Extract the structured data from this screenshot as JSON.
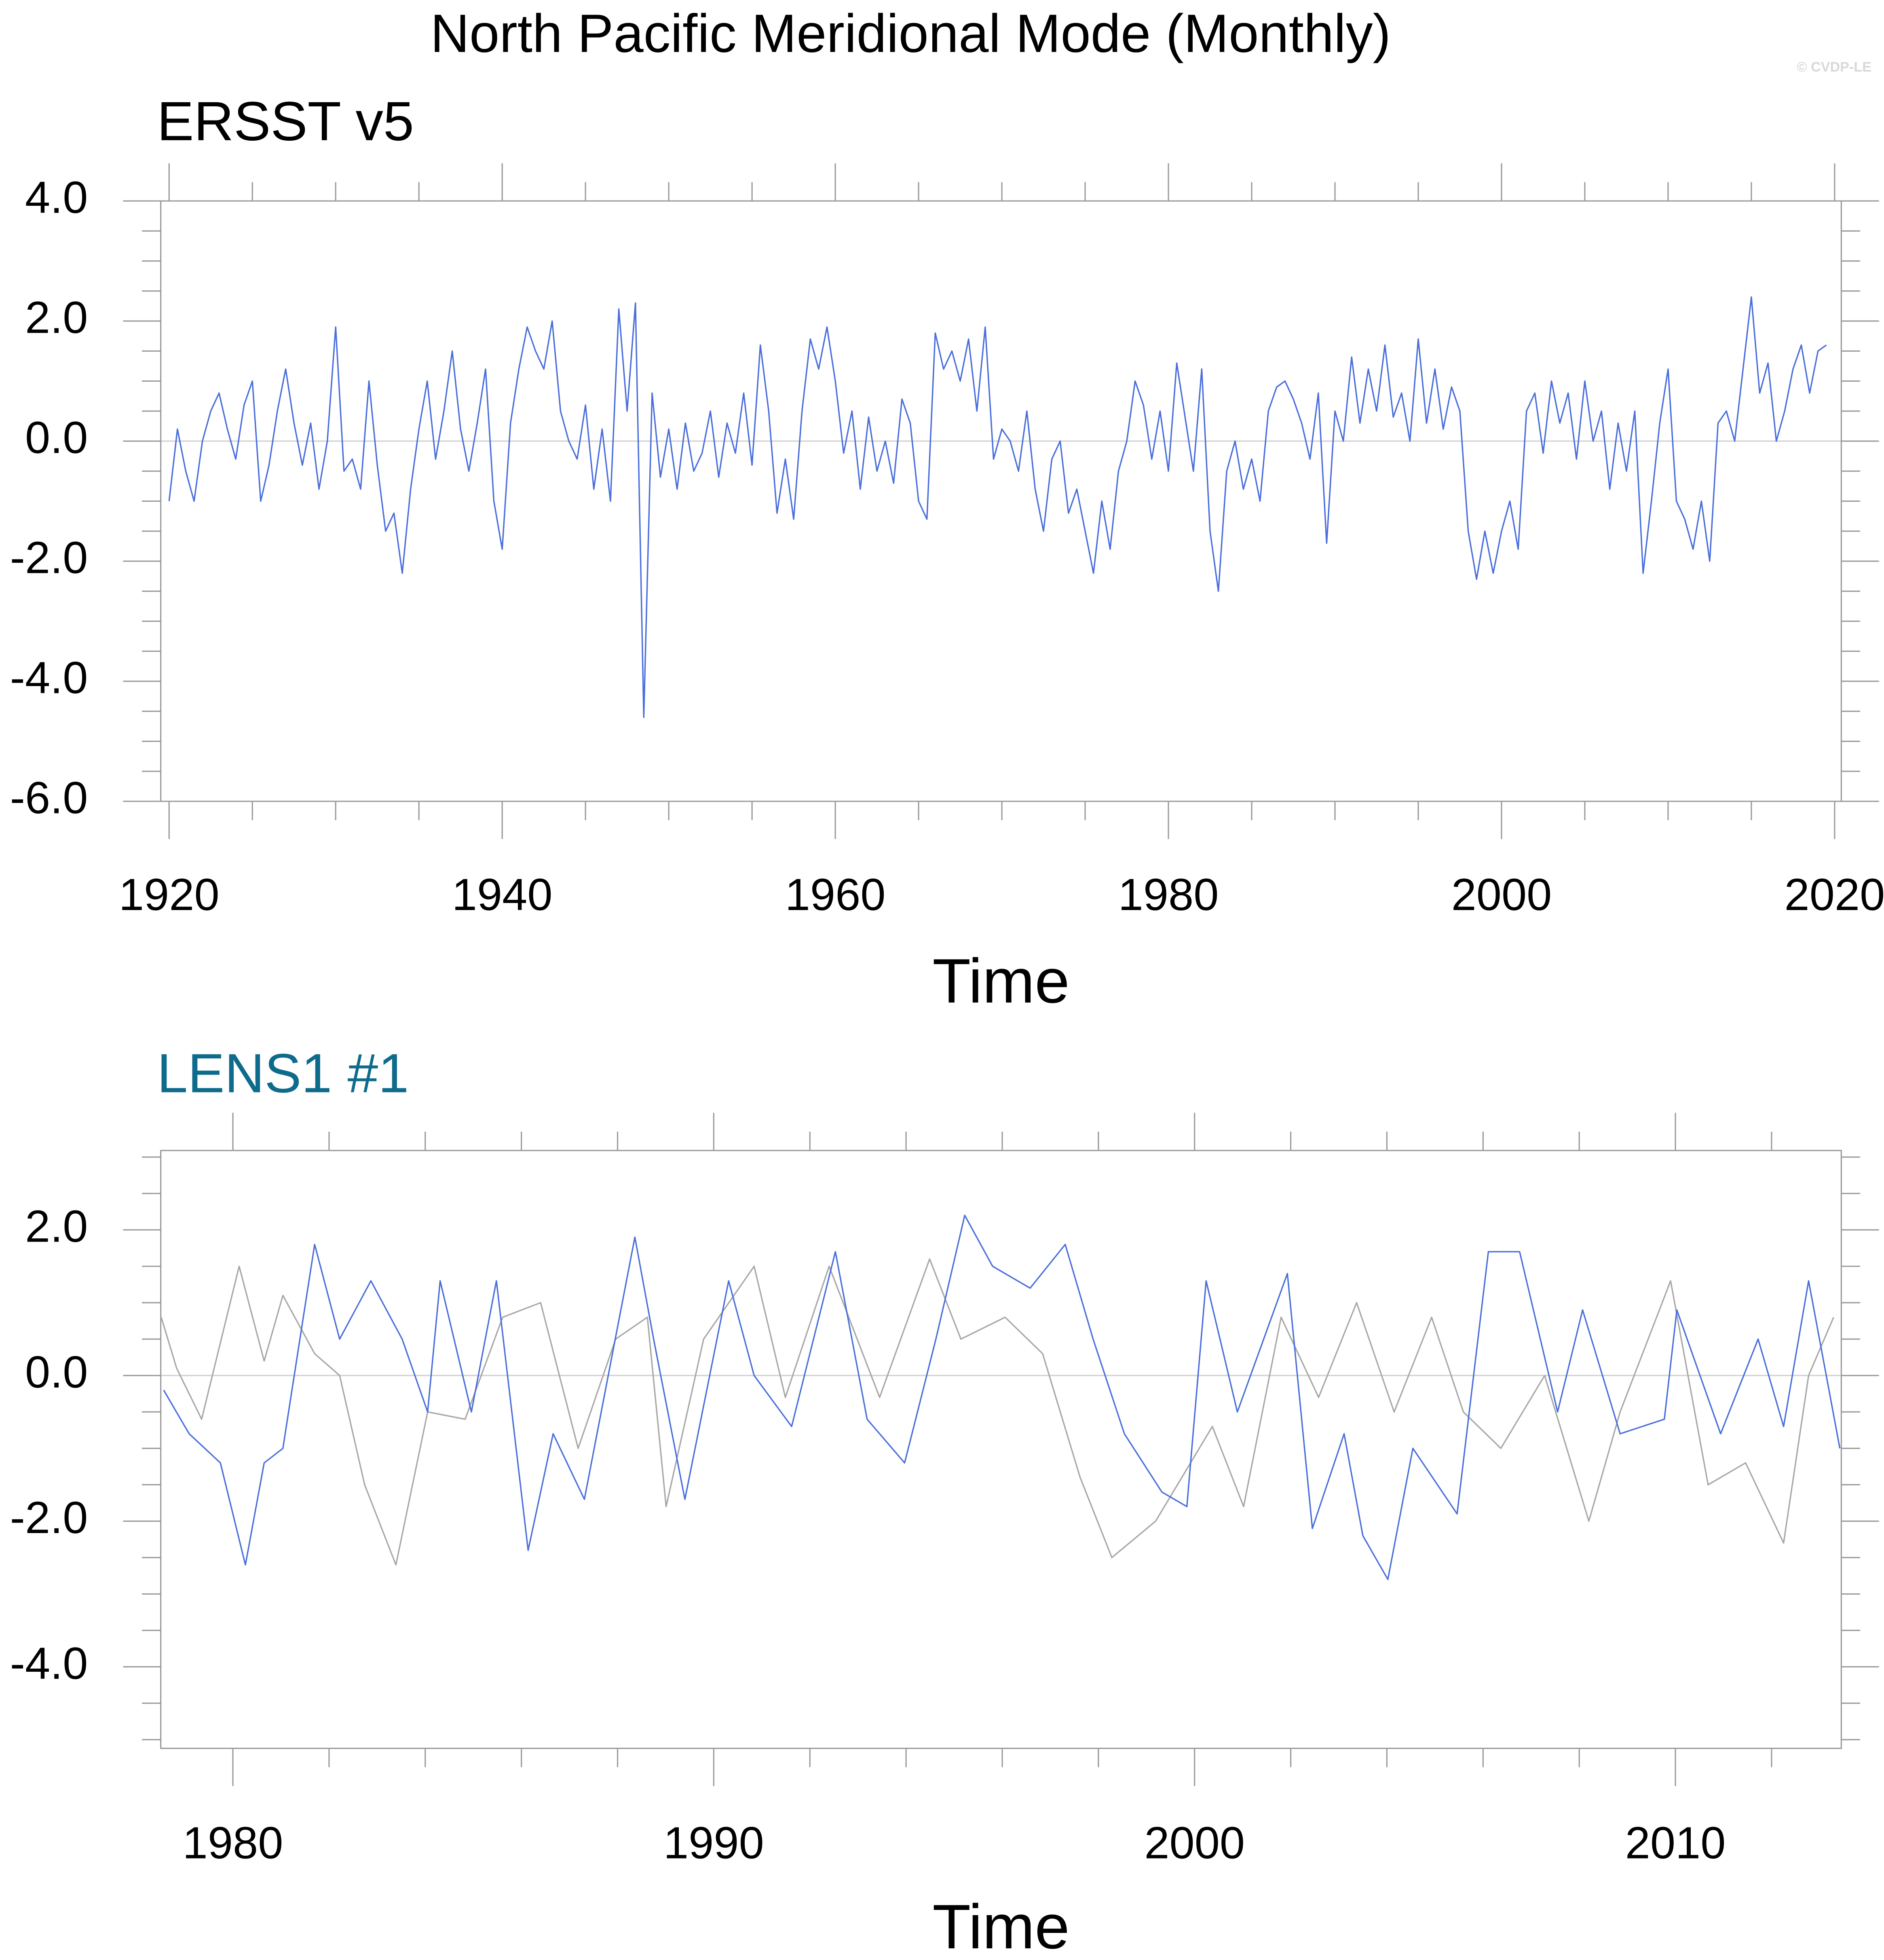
{
  "title": "North Pacific Meridional Mode (Monthly)",
  "credit": "© CVDP-LE",
  "chart_data": [
    {
      "type": "line",
      "title": "ERSST v5",
      "title_color": "#000000",
      "xlabel": "Time",
      "xlim": [
        1919.5,
        2020.4
      ],
      "xticks": [
        1920,
        1940,
        1960,
        1980,
        2000,
        2020
      ],
      "xminorticks": [
        1925,
        1930,
        1935,
        1945,
        1950,
        1955,
        1965,
        1970,
        1975,
        1985,
        1990,
        1995,
        2005,
        2010,
        2015
      ],
      "ylim": [
        -6,
        4
      ],
      "yticks": [
        {
          "value": -6,
          "label": "-6.0"
        },
        {
          "value": -4,
          "label": "-4.0"
        },
        {
          "value": -2,
          "label": "-2.0"
        },
        {
          "value": 0,
          "label": "0.0"
        },
        {
          "value": 2,
          "label": "2.0"
        },
        {
          "value": 4,
          "label": "4.0"
        }
      ],
      "yminorticks": [
        -5.5,
        -5,
        -4.5,
        -3.5,
        -3,
        -2.5,
        -1.5,
        -1,
        -0.5,
        0.5,
        1,
        1.5,
        2.5,
        3,
        3.5
      ],
      "zeroline": true,
      "series": [
        {
          "color": "#4a6fdc",
          "x": [
            1920,
            1920.5,
            1921,
            1921.5,
            1922,
            1922.5,
            1923,
            1923.5,
            1924,
            1924.5,
            1925,
            1925.5,
            1926,
            1926.5,
            1927,
            1927.5,
            1928,
            1928.5,
            1929,
            1929.5,
            1930,
            1930.5,
            1931,
            1931.5,
            1932,
            1932.5,
            1933,
            1933.5,
            1934,
            1934.5,
            1935,
            1935.5,
            1936,
            1936.5,
            1937,
            1937.5,
            1938,
            1938.5,
            1939,
            1939.5,
            1940,
            1940.5,
            1941,
            1941.5,
            1942,
            1942.5,
            1943,
            1943.5,
            1944,
            1944.5,
            1945,
            1945.5,
            1946,
            1946.5,
            1947,
            1947.5,
            1948,
            1948.5,
            1949,
            1949.5,
            1950,
            1950.5,
            1951,
            1951.5,
            1952,
            1952.5,
            1953,
            1953.5,
            1954,
            1954.5,
            1955,
            1955.5,
            1956,
            1956.5,
            1957,
            1957.5,
            1958,
            1958.5,
            1959,
            1959.5,
            1960,
            1960.5,
            1961,
            1961.5,
            1962,
            1962.5,
            1963,
            1963.5,
            1964,
            1964.5,
            1965,
            1965.5,
            1966,
            1966.5,
            1967,
            1967.5,
            1968,
            1968.5,
            1969,
            1969.5,
            1970,
            1970.5,
            1971,
            1971.5,
            1972,
            1972.5,
            1973,
            1973.5,
            1974,
            1974.5,
            1975,
            1975.5,
            1976,
            1976.5,
            1977,
            1977.5,
            1978,
            1978.5,
            1979,
            1979.5,
            1980,
            1980.5,
            1981,
            1981.5,
            1982,
            1982.5,
            1983,
            1983.5,
            1984,
            1984.5,
            1985,
            1985.5,
            1986,
            1986.5,
            1987,
            1987.5,
            1988,
            1988.5,
            1989,
            1989.5,
            1990,
            1990.5,
            1991,
            1991.5,
            1992,
            1992.5,
            1993,
            1993.5,
            1994,
            1994.5,
            1995,
            1995.5,
            1996,
            1996.5,
            1997,
            1997.5,
            1998,
            1998.5,
            1999,
            1999.5,
            2000,
            2000.5,
            2001,
            2001.5,
            2002,
            2002.5,
            2003,
            2003.5,
            2004,
            2004.5,
            2005,
            2005.5,
            2006,
            2006.5,
            2007,
            2007.5,
            2008,
            2008.5,
            2009,
            2009.5,
            2010,
            2010.5,
            2011,
            2011.5,
            2012,
            2012.5,
            2013,
            2013.5,
            2014,
            2014.5,
            2015,
            2015.5,
            2016,
            2016.5,
            2017,
            2017.5,
            2018,
            2018.5,
            2019,
            2019.5
          ],
          "values": [
            -1.0,
            0.2,
            -0.5,
            -1.0,
            0.0,
            0.5,
            0.8,
            0.2,
            -0.3,
            0.6,
            1.0,
            -1.0,
            -0.4,
            0.5,
            1.2,
            0.3,
            -0.4,
            0.3,
            -0.8,
            0.0,
            1.9,
            -0.5,
            -0.3,
            -0.8,
            1.0,
            -0.4,
            -1.5,
            -1.2,
            -2.2,
            -0.8,
            0.2,
            1.0,
            -0.3,
            0.5,
            1.5,
            0.2,
            -0.5,
            0.3,
            1.2,
            -1.0,
            -1.8,
            0.3,
            1.2,
            1.9,
            1.5,
            1.2,
            2.0,
            0.5,
            0.0,
            -0.3,
            0.6,
            -0.8,
            0.2,
            -1.0,
            2.2,
            0.5,
            2.3,
            -4.6,
            0.8,
            -0.6,
            0.2,
            -0.8,
            0.3,
            -0.5,
            -0.2,
            0.5,
            -0.6,
            0.3,
            -0.2,
            0.8,
            -0.4,
            1.6,
            0.5,
            -1.2,
            -0.3,
            -1.3,
            0.5,
            1.7,
            1.2,
            1.9,
            1.0,
            -0.2,
            0.5,
            -0.8,
            0.4,
            -0.5,
            0.0,
            -0.7,
            0.7,
            0.3,
            -1.0,
            -1.3,
            1.8,
            1.2,
            1.5,
            1.0,
            1.7,
            0.5,
            1.9,
            -0.3,
            0.2,
            0.0,
            -0.5,
            0.5,
            -0.8,
            -1.5,
            -0.3,
            0.0,
            -1.2,
            -0.8,
            -1.5,
            -2.2,
            -1.0,
            -1.8,
            -0.5,
            0.0,
            1.0,
            0.6,
            -0.3,
            0.5,
            -0.5,
            1.3,
            0.4,
            -0.5,
            1.2,
            -1.5,
            -2.5,
            -0.5,
            0.0,
            -0.8,
            -0.3,
            -1.0,
            0.5,
            0.9,
            1.0,
            0.7,
            0.3,
            -0.3,
            0.8,
            -1.7,
            0.5,
            0.0,
            1.4,
            0.3,
            1.2,
            0.5,
            1.6,
            0.4,
            0.8,
            0.0,
            1.7,
            0.3,
            1.2,
            0.2,
            0.9,
            0.5,
            -1.5,
            -2.3,
            -1.5,
            -2.2,
            -1.5,
            -1.0,
            -1.8,
            0.5,
            0.8,
            -0.2,
            1.0,
            0.3,
            0.8,
            -0.3,
            1.0,
            0.0,
            0.5,
            -0.8,
            0.3,
            -0.5,
            0.5,
            -2.2,
            -1.0,
            0.3,
            1.2,
            -1.0,
            -1.3,
            -1.8,
            -1.0,
            -2.0,
            0.3,
            0.5,
            0.0,
            1.2,
            2.4,
            0.8,
            1.3,
            0.0,
            0.5,
            1.2,
            1.6,
            0.8,
            1.5,
            1.6
          ]
        }
      ]
    },
    {
      "type": "line",
      "title": "LENS1 #1",
      "title_color": "#0e6b8c",
      "xlabel": "Time",
      "xlim": [
        1978.5,
        2013.45
      ],
      "xticks": [
        1980,
        1990,
        2000,
        2010
      ],
      "xminorticks": [
        1982,
        1984,
        1986,
        1988,
        1992,
        1994,
        1996,
        1998,
        2002,
        2004,
        2006,
        2008,
        2012
      ],
      "ylim": [
        -5.12,
        3.09
      ],
      "yticks": [
        {
          "value": -4,
          "label": "-4.0"
        },
        {
          "value": -2,
          "label": "-2.0"
        },
        {
          "value": 0,
          "label": "0.0"
        },
        {
          "value": 2,
          "label": "2.0"
        }
      ],
      "yminorticks": [
        -5,
        -4.5,
        -3.5,
        -3,
        -2.5,
        -1.5,
        -1,
        -0.5,
        0.5,
        1,
        1.5,
        2.5,
        3
      ],
      "zeroline": true,
      "series": [
        {
          "color": "#a8a8a8",
          "x": [
            1978.51,
            1978.83,
            1979.35,
            1980.13,
            1980.65,
            1981.04,
            1981.7,
            1982.22,
            1982.74,
            1983.39,
            1984.05,
            1984.83,
            1985.61,
            1986.4,
            1987.18,
            1987.96,
            1988.62,
            1989.01,
            1989.79,
            1990.84,
            1991.49,
            1992.4,
            1993.45,
            1994.49,
            1995.14,
            1996.06,
            1996.84,
            1997.62,
            1998.28,
            1999.19,
            2000.37,
            2001.02,
            2001.8,
            2002.58,
            2003.37,
            2004.15,
            2004.93,
            2005.59,
            2006.37,
            2007.28,
            2008.2,
            2008.85,
            2009.9,
            2010.68,
            2011.46,
            2012.25,
            2012.77,
            2013.29
          ],
          "values": [
            0.8,
            0.1,
            -0.6,
            1.5,
            0.2,
            1.1,
            0.3,
            0.0,
            -1.5,
            -2.6,
            -0.5,
            -0.6,
            0.8,
            1.0,
            -1.0,
            0.5,
            0.8,
            -1.8,
            0.5,
            1.5,
            -0.3,
            1.5,
            -0.3,
            1.6,
            0.5,
            0.8,
            0.3,
            -1.4,
            -2.5,
            -2.0,
            -0.7,
            -1.8,
            0.8,
            -0.3,
            1.0,
            -0.5,
            0.8,
            -0.5,
            -1.0,
            0.0,
            -2.0,
            -0.5,
            1.3,
            -1.5,
            -1.2,
            -2.3,
            0.0,
            0.8
          ]
        },
        {
          "color": "#4a6fdc",
          "x": [
            1978.56,
            1979.09,
            1979.74,
            1980.26,
            1980.65,
            1981.04,
            1981.7,
            1982.22,
            1982.87,
            1983.52,
            1984.05,
            1984.31,
            1984.96,
            1985.48,
            1986.14,
            1986.66,
            1987.31,
            1988.36,
            1988.75,
            1989.4,
            1990.31,
            1990.84,
            1991.62,
            1992.53,
            1993.19,
            1993.97,
            1994.62,
            1995.22,
            1995.8,
            1996.58,
            1997.31,
            1997.89,
            1998.54,
            1999.32,
            1999.84,
            2000.24,
            2000.89,
            2001.93,
            2002.45,
            2003.11,
            2003.5,
            2004.02,
            2004.54,
            2005.46,
            2006.11,
            2006.76,
            2007.55,
            2008.07,
            2008.85,
            2009.77,
            2010.03,
            2010.94,
            2011.72,
            2012.25,
            2012.77,
            2013.42
          ],
          "values": [
            -0.2,
            -0.8,
            -1.2,
            -2.6,
            -1.2,
            -1.0,
            1.8,
            0.5,
            1.3,
            0.5,
            -0.5,
            1.3,
            -0.5,
            1.3,
            -2.4,
            -0.8,
            -1.7,
            1.9,
            0.5,
            -1.7,
            1.3,
            0.0,
            -0.7,
            1.7,
            -0.6,
            -1.2,
            0.5,
            2.2,
            1.5,
            1.2,
            1.8,
            0.5,
            -0.8,
            -1.6,
            -1.8,
            1.3,
            -0.5,
            1.4,
            -2.1,
            -0.8,
            -2.2,
            -2.8,
            -1.0,
            -1.9,
            1.7,
            1.7,
            -0.5,
            0.9,
            -0.8,
            -0.6,
            0.9,
            -0.8,
            0.5,
            -0.7,
            1.3,
            -1.0
          ]
        }
      ]
    }
  ]
}
